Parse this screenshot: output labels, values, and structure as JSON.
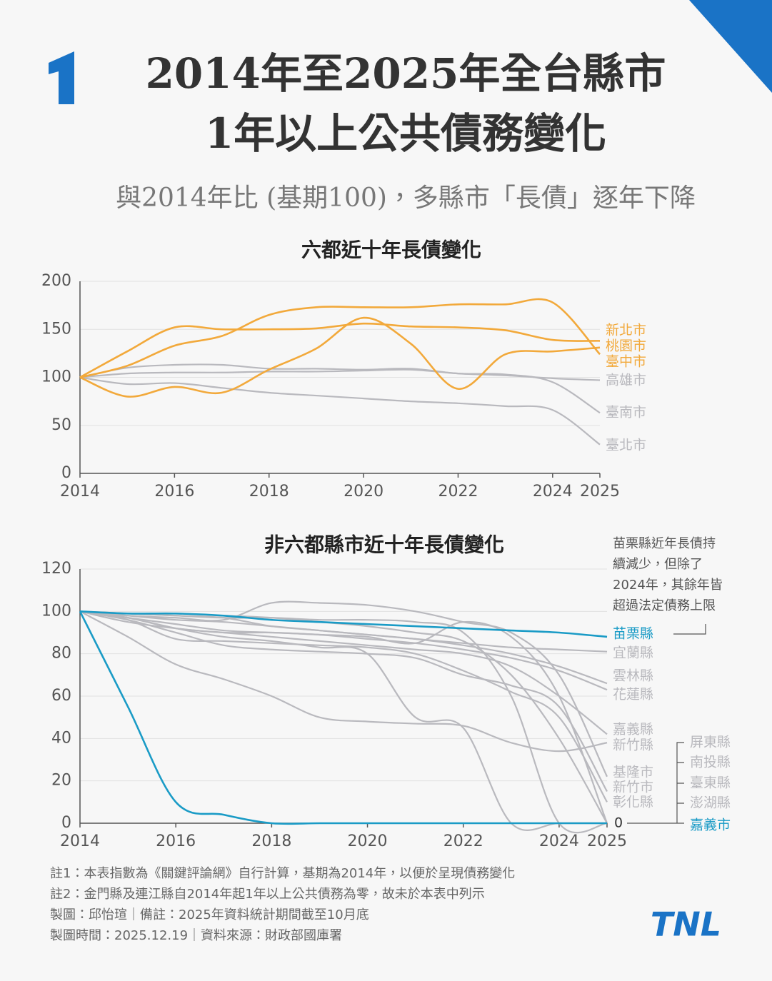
{
  "header": {
    "title_lines": [
      "2014年至2025年全台縣市",
      "1年以上公共債務變化"
    ],
    "subtitle": "與2014年比 (基期100)，多縣市「長債」逐年下降"
  },
  "chart_data": [
    {
      "type": "line",
      "title": "六都近十年長債變化",
      "x": [
        2014,
        2015,
        2016,
        2017,
        2018,
        2019,
        2020,
        2021,
        2022,
        2023,
        2024,
        2025
      ],
      "xlim": [
        2014,
        2025
      ],
      "xticks": [
        2014,
        2016,
        2018,
        2020,
        2022,
        2024,
        2025
      ],
      "ylim": [
        0,
        200
      ],
      "yticks": [
        0,
        50,
        100,
        150,
        200
      ],
      "grid": true,
      "series": [
        {
          "name": "新北市",
          "color": "#f2a93b",
          "values": [
            100,
            127,
            152,
            150,
            150,
            151,
            156,
            153,
            152,
            149,
            139,
            138
          ]
        },
        {
          "name": "桃園市",
          "color": "#f2a93b",
          "values": [
            100,
            80,
            90,
            84,
            108,
            130,
            162,
            135,
            88,
            124,
            127,
            131
          ]
        },
        {
          "name": "臺中市",
          "color": "#f2a93b",
          "values": [
            100,
            112,
            133,
            143,
            165,
            173,
            173,
            173,
            176,
            176,
            178,
            124
          ]
        },
        {
          "name": "高雄市",
          "color": "#b9b9be",
          "values": [
            100,
            104,
            105,
            105,
            106,
            106,
            107,
            108,
            104,
            102,
            99,
            97
          ]
        },
        {
          "name": "臺南市",
          "color": "#b9b9be",
          "values": [
            100,
            110,
            113,
            113,
            109,
            109,
            108,
            109,
            104,
            103,
            95,
            63
          ]
        },
        {
          "name": "臺北市",
          "color": "#b9b9be",
          "values": [
            100,
            93,
            94,
            89,
            84,
            81,
            78,
            75,
            73,
            70,
            66,
            30
          ]
        }
      ]
    },
    {
      "type": "line",
      "title": "非六都縣市近十年長債變化",
      "x": [
        2014,
        2015,
        2016,
        2017,
        2018,
        2019,
        2020,
        2021,
        2022,
        2023,
        2024,
        2025
      ],
      "xlim": [
        2014,
        2025
      ],
      "xticks": [
        2014,
        2016,
        2018,
        2020,
        2022,
        2024,
        2025
      ],
      "ylim": [
        0,
        120
      ],
      "yticks": [
        0,
        20,
        40,
        60,
        80,
        100,
        120
      ],
      "grid": true,
      "annotation_lines": [
        "苗栗縣近年長債持",
        "續減少，但除了",
        "2024年，其餘年皆",
        "超過法定債務上限"
      ],
      "zero_group_label": "0",
      "series": [
        {
          "name": "苗栗縣",
          "color": "#1a9bc6",
          "values": [
            100,
            99,
            99,
            98,
            96,
            95,
            94,
            93,
            92,
            91,
            90,
            88
          ]
        },
        {
          "name": "宜蘭縣",
          "color": "#b9b9be",
          "values": [
            100,
            99,
            98,
            97,
            93,
            91,
            89,
            87,
            85,
            83,
            82,
            81
          ]
        },
        {
          "name": "雲林縣",
          "color": "#b9b9be",
          "values": [
            100,
            98,
            96,
            95,
            93,
            91,
            89,
            87,
            84,
            80,
            74,
            66
          ]
        },
        {
          "name": "花蓮縣",
          "color": "#b9b9be",
          "values": [
            100,
            97,
            94,
            91,
            90,
            89,
            87,
            85,
            82,
            78,
            72,
            63
          ]
        },
        {
          "name": "嘉義縣",
          "color": "#b9b9be",
          "values": [
            100,
            97,
            92,
            90,
            88,
            86,
            84,
            82,
            80,
            74,
            60,
            42
          ]
        },
        {
          "name": "新竹縣",
          "color": "#b9b9be",
          "values": [
            100,
            88,
            75,
            68,
            60,
            50,
            48,
            47,
            46,
            38,
            34,
            38
          ]
        },
        {
          "name": "基隆市",
          "color": "#b9b9be",
          "values": [
            100,
            98,
            97,
            96,
            104,
            104,
            103,
            100,
            95,
            90,
            70,
            22
          ]
        },
        {
          "name": "新竹市",
          "color": "#b9b9be",
          "values": [
            100,
            96,
            90,
            84,
            82,
            81,
            80,
            78,
            70,
            65,
            55,
            15
          ]
        },
        {
          "name": "彰化縣",
          "color": "#b9b9be",
          "values": [
            100,
            96,
            87,
            86,
            85,
            84,
            83,
            80,
            72,
            62,
            50,
            10
          ]
        },
        {
          "name": "屏東縣",
          "color": "#b9b9be",
          "values": [
            100,
            99,
            99,
            98,
            97,
            95,
            93,
            90,
            86,
            70,
            40,
            0
          ]
        },
        {
          "name": "南投縣",
          "color": "#b9b9be",
          "values": [
            100,
            97,
            92,
            88,
            86,
            83,
            80,
            50,
            45,
            0,
            0,
            0
          ]
        },
        {
          "name": "臺東縣",
          "color": "#b9b9be",
          "values": [
            100,
            99,
            98,
            97,
            97,
            96,
            96,
            95,
            90,
            60,
            0,
            0
          ]
        },
        {
          "name": "澎湖縣",
          "color": "#b9b9be",
          "values": [
            100,
            95,
            92,
            90,
            90,
            89,
            88,
            85,
            95,
            88,
            60,
            0
          ]
        },
        {
          "name": "嘉義市",
          "color": "#1a9bc6",
          "values": [
            100,
            55,
            10,
            4,
            0,
            0,
            0,
            0,
            0,
            0,
            0,
            0
          ]
        }
      ]
    }
  ],
  "notes": [
    "註1：本表指數為《關鍵評論網》自行計算，基期為2014年，以便於呈現債務變化",
    "註2：金門縣及連江縣自2014年起1年以上公共債務為零，故未於本表中列示",
    "製圖：邱怡瑄｜備註：2025年資料統計期間截至10月底",
    "製圖時間：2025.12.19｜資料來源：財政部國庫署"
  ],
  "logo": "TNL"
}
